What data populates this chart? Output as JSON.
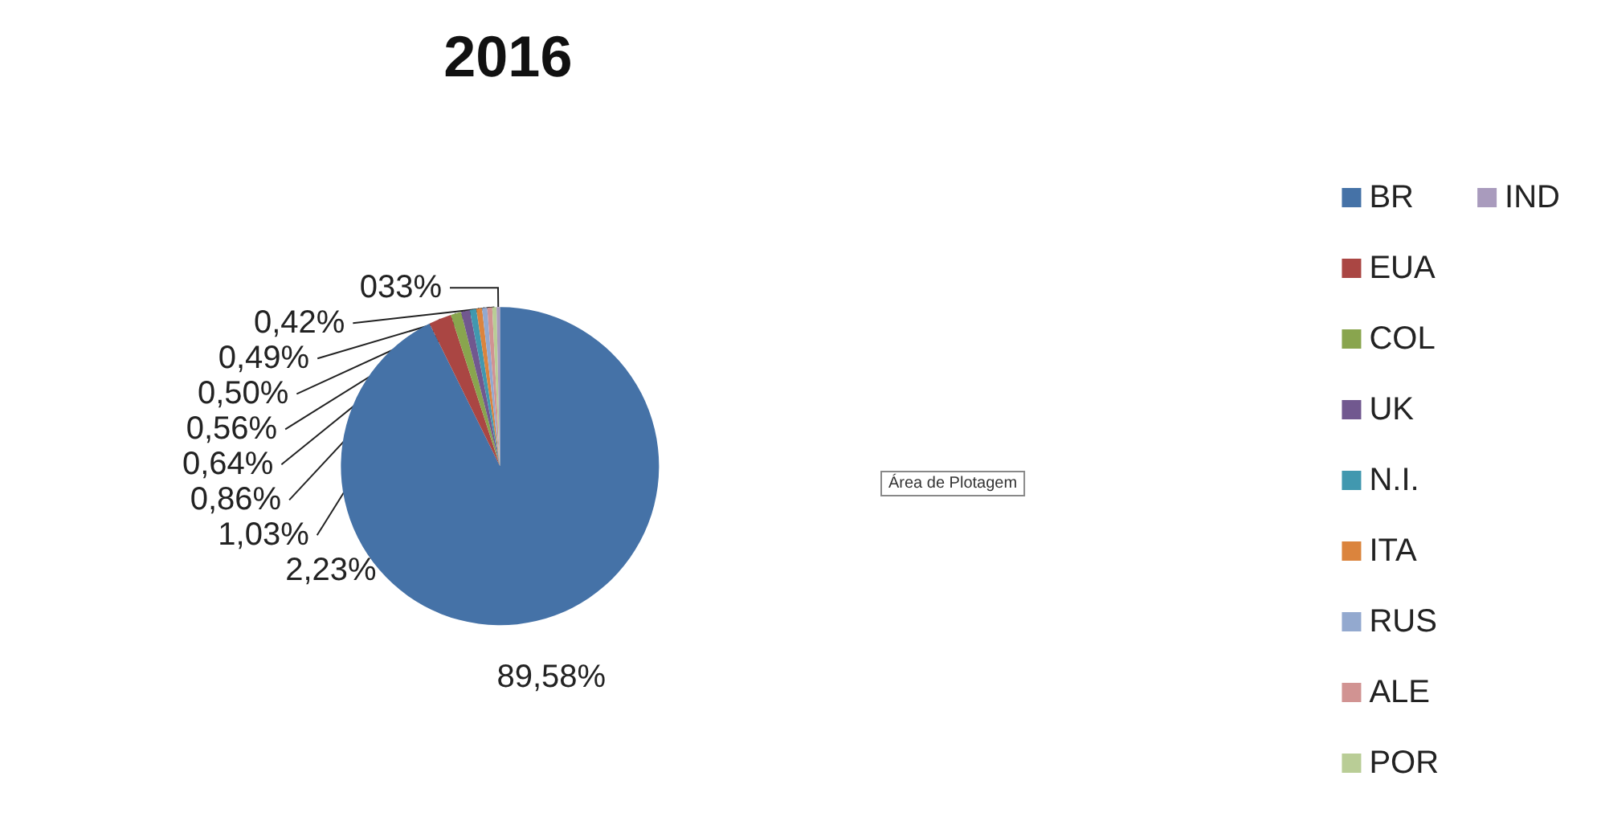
{
  "chart_data": {
    "type": "pie",
    "title": "2016",
    "categories": [
      "BR",
      "EUA",
      "COL",
      "UK",
      "N.I.",
      "ITA",
      "RUS",
      "ALE",
      "POR",
      "IND"
    ],
    "values": [
      89.58,
      2.23,
      1.03,
      0.86,
      0.64,
      0.56,
      0.5,
      0.49,
      0.42,
      0.33
    ],
    "value_labels": [
      "89,58%",
      "2,23%",
      "1,03%",
      "0,86%",
      "0,64%",
      "0,56%",
      "0,50%",
      "0,49%",
      "0,42%",
      "033%"
    ],
    "colors": [
      "#4572a7",
      "#aa4643",
      "#89a54e",
      "#71588f",
      "#4198af",
      "#db843d",
      "#93a9cf",
      "#d19392",
      "#b9cd96",
      "#a99bbd"
    ],
    "legend": "right",
    "annotations": [
      "Área de Plotagem"
    ]
  }
}
